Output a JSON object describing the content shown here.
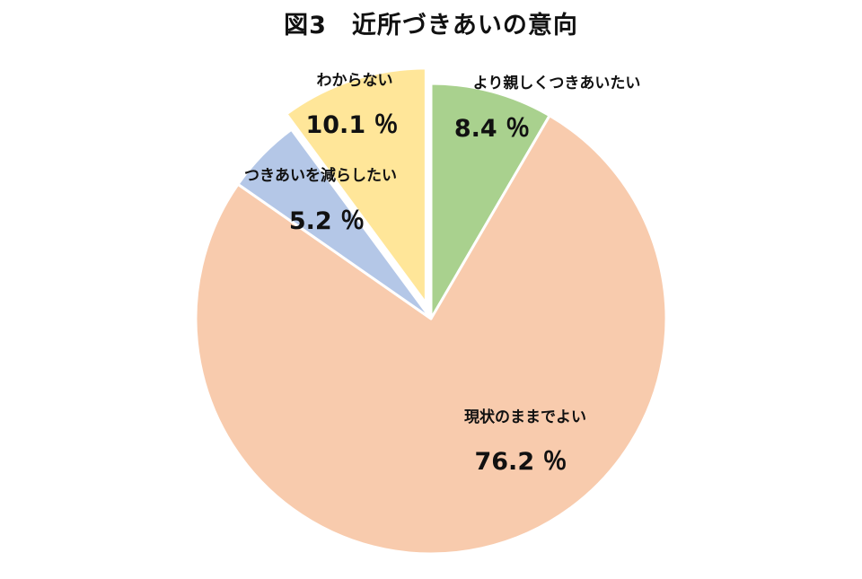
{
  "chart_data": {
    "type": "pie",
    "title": "図3　近所づきあいの意向",
    "start_angle_deg": 0,
    "direction": "clockwise",
    "slices": [
      {
        "label": "より親しくつきあいたい",
        "value": 8.4,
        "display": "8.4 ％",
        "color": "#a9d18e",
        "exploded": false
      },
      {
        "label": "現状のままでよい",
        "value": 76.2,
        "display": "76.2 ％",
        "color": "#f8cbad",
        "exploded": false
      },
      {
        "label": "つきあいを減らしたい",
        "value": 5.2,
        "display": "5.2 ％",
        "color": "#b4c7e7",
        "exploded": false
      },
      {
        "label": "わからない",
        "value": 10.1,
        "display": "10.1 ％",
        "color": "#ffe699",
        "exploded": true
      }
    ],
    "legend": "none"
  }
}
